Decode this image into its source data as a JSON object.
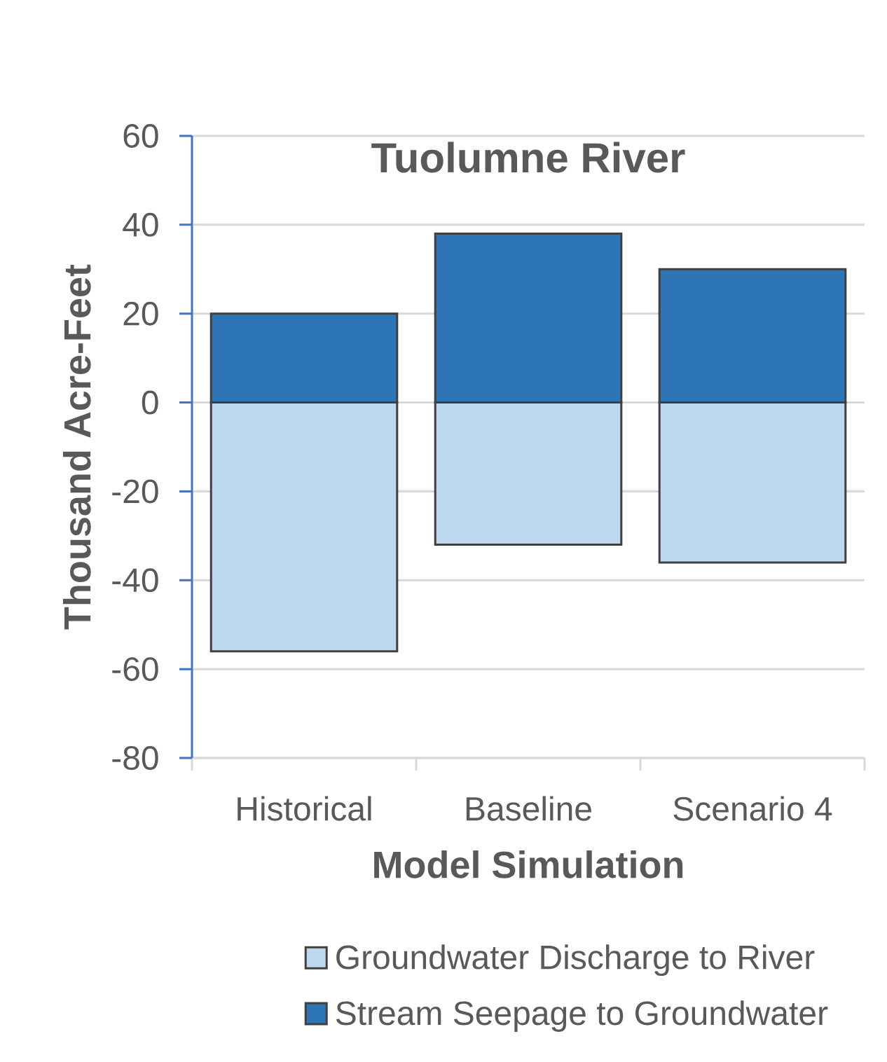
{
  "chart_data": {
    "type": "bar",
    "title": "Tuolumne River",
    "xlabel": "Model Simulation",
    "ylabel": "Thousand Acre-Feet",
    "categories": [
      "Historical",
      "Baseline",
      "Scenario 4"
    ],
    "series": [
      {
        "name": "Groundwater Discharge to River",
        "color": "#bdd7ee",
        "values": [
          -56,
          -32,
          -36
        ]
      },
      {
        "name": "Stream Seepage to Groundwater",
        "color": "#2e75b6",
        "values": [
          20,
          38,
          30
        ]
      }
    ],
    "stacked": true,
    "ylim": [
      -80,
      60
    ],
    "yticks": [
      -80,
      -60,
      -40,
      -20,
      0,
      20,
      40,
      60
    ],
    "grid": "y",
    "legend": "bottom"
  }
}
